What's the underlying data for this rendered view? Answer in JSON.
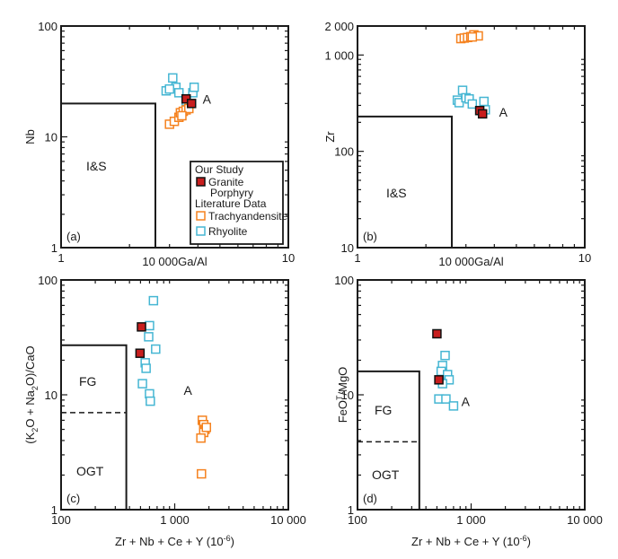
{
  "colors": {
    "granite": "#c81e1e",
    "granite_edge": "#111111",
    "trachy": "#f5821f",
    "rhyolite": "#45b6d3",
    "ink": "#1a1a1a"
  },
  "legend": {
    "our_study": "Our Study",
    "granite_line1": "Granite",
    "granite_line2": "Porphyry",
    "literature": "Literature Data",
    "trachy": "Trachyandensite",
    "rhyolite": "Rhyolite"
  },
  "chart_data": [
    {
      "id": "a",
      "type": "scatter",
      "panel_label": "(a)",
      "xscale": "log",
      "yscale": "log",
      "xlim": [
        1,
        10
      ],
      "ylim": [
        1,
        100
      ],
      "xticks": [
        1,
        10
      ],
      "xtick_labels": [
        "1",
        "10"
      ],
      "yticks": [
        1,
        10,
        100
      ],
      "ytick_labels": [
        "1",
        "10",
        "100"
      ],
      "xlabel": "10 000Ga/Al",
      "ylabel": "Nb",
      "fields": [
        {
          "label": "I&S",
          "polyline": [
            [
              1,
              20
            ],
            [
              2.6,
              20
            ],
            [
              2.6,
              1
            ]
          ]
        },
        {
          "label": "A",
          "label_at": [
            4.2,
            20
          ]
        }
      ],
      "series": [
        {
          "name": "Granite Porphyry",
          "points": [
            [
              3.55,
              22
            ],
            [
              3.75,
              20
            ]
          ]
        },
        {
          "name": "Trachyandensite",
          "points": [
            [
              3.0,
              13
            ],
            [
              3.15,
              13.8
            ],
            [
              3.3,
              15
            ],
            [
              3.35,
              16.5
            ],
            [
              3.45,
              17
            ],
            [
              3.55,
              17.5
            ],
            [
              3.65,
              18
            ],
            [
              3.4,
              15.5
            ]
          ]
        },
        {
          "name": "Rhyolite",
          "points": [
            [
              2.9,
              26
            ],
            [
              3.1,
              34
            ],
            [
              3.2,
              28
            ],
            [
              3.3,
              25
            ],
            [
              3.0,
              27
            ],
            [
              3.8,
              25
            ],
            [
              3.85,
              28
            ],
            [
              3.55,
              21
            ]
          ]
        }
      ]
    },
    {
      "id": "b",
      "type": "scatter",
      "panel_label": "(b)",
      "xscale": "log",
      "yscale": "log",
      "xlim": [
        1,
        10
      ],
      "ylim": [
        10,
        2000
      ],
      "xticks": [
        1,
        10
      ],
      "xtick_labels": [
        "1",
        "10"
      ],
      "yticks": [
        10,
        100,
        1000,
        2000
      ],
      "ytick_labels": [
        "10",
        "100",
        "1 000",
        "2 000"
      ],
      "xlabel": "10 000Ga/Al",
      "ylabel": "Zr",
      "fields": [
        {
          "label": "I&S",
          "polyline": [
            [
              1,
              230
            ],
            [
              2.6,
              230
            ],
            [
              2.6,
              10
            ]
          ]
        },
        {
          "label": "A",
          "label_at": [
            4.2,
            230
          ]
        }
      ],
      "series": [
        {
          "name": "Granite Porphyry",
          "points": [
            [
              3.45,
              265
            ],
            [
              3.55,
              245
            ]
          ]
        },
        {
          "name": "Trachyandensite",
          "points": [
            [
              2.85,
              1480
            ],
            [
              2.95,
              1500
            ],
            [
              3.05,
              1520
            ],
            [
              3.15,
              1550
            ],
            [
              3.25,
              1620
            ],
            [
              3.4,
              1580
            ],
            [
              3.2,
              1540
            ]
          ]
        },
        {
          "name": "Rhyolite",
          "points": [
            [
              2.75,
              340
            ],
            [
              2.8,
              320
            ],
            [
              2.9,
              430
            ],
            [
              3.0,
              360
            ],
            [
              3.1,
              350
            ],
            [
              3.2,
              310
            ],
            [
              3.6,
              330
            ],
            [
              3.65,
              270
            ]
          ]
        }
      ]
    },
    {
      "id": "c",
      "type": "scatter",
      "panel_label": "(c)",
      "xscale": "log",
      "yscale": "log",
      "xlim": [
        100,
        10000
      ],
      "ylim": [
        1,
        100
      ],
      "xticks": [
        100,
        1000,
        10000
      ],
      "xtick_labels": [
        "100",
        "1 000",
        "10 000"
      ],
      "yticks": [
        1,
        10,
        100
      ],
      "ytick_labels": [
        "1",
        "10",
        "100"
      ],
      "xlabel": "Zr + Nb + Ce + Y (10",
      "xlabel_exp": "-6",
      "xlabel_end": ")",
      "ylabel_parts": [
        "(K",
        "2",
        "O + Na",
        "2",
        "O)/CaO"
      ],
      "fields": [
        {
          "label": "FG",
          "polyline": [
            [
              100,
              27
            ],
            [
              375,
              27
            ],
            [
              375,
              1
            ]
          ]
        },
        {
          "label": "OGT"
        },
        {
          "label": "A",
          "label_at": [
            1200,
            10
          ]
        }
      ],
      "dashed": [
        [
          100,
          7
        ],
        [
          375,
          7
        ]
      ],
      "series": [
        {
          "name": "Granite Porphyry",
          "points": [
            [
              510,
              39
            ],
            [
              495,
              23
            ]
          ]
        },
        {
          "name": "Trachyandensite",
          "points": [
            [
              1750,
              6
            ],
            [
              1800,
              5.5
            ],
            [
              1850,
              5
            ],
            [
              1800,
              4.7
            ],
            [
              1700,
              4.2
            ],
            [
              1900,
              5.2
            ],
            [
              1720,
              2.05
            ]
          ]
        },
        {
          "name": "Rhyolite",
          "points": [
            [
              650,
              66
            ],
            [
              600,
              40
            ],
            [
              590,
              32
            ],
            [
              680,
              25
            ],
            [
              550,
              19
            ],
            [
              560,
              17
            ],
            [
              520,
              12.5
            ],
            [
              600,
              10.2
            ],
            [
              610,
              8.8
            ]
          ]
        }
      ]
    },
    {
      "id": "d",
      "type": "scatter",
      "panel_label": "(d)",
      "xscale": "log",
      "yscale": "log",
      "xlim": [
        100,
        10000
      ],
      "ylim": [
        1,
        100
      ],
      "xticks": [
        100,
        1000,
        10000
      ],
      "xtick_labels": [
        "100",
        "1 000",
        "10 000"
      ],
      "yticks": [
        1,
        10,
        100
      ],
      "ytick_labels": [
        "1",
        "10",
        "100"
      ],
      "xlabel": "Zr + Nb + Ce + Y (10",
      "xlabel_exp": "-6",
      "xlabel_end": ")",
      "ylabel_parts": [
        "FeO",
        "T",
        "/MgO"
      ],
      "fields": [
        {
          "label": "FG",
          "polyline": [
            [
              100,
              16
            ],
            [
              350,
              16
            ],
            [
              350,
              1
            ]
          ]
        },
        {
          "label": "OGT"
        },
        {
          "label": "A",
          "label_at": [
            820,
            8
          ]
        }
      ],
      "dashed": [
        [
          100,
          3.9
        ],
        [
          350,
          3.9
        ]
      ],
      "series": [
        {
          "name": "Granite Porphyry",
          "points": [
            [
              500,
              34
            ],
            [
              520,
              13.5
            ]
          ]
        },
        {
          "name": "Trachyandensite",
          "points": []
        },
        {
          "name": "Rhyolite",
          "points": [
            [
              590,
              22
            ],
            [
              560,
              18
            ],
            [
              545,
              16
            ],
            [
              620,
              15
            ],
            [
              640,
              13.5
            ],
            [
              560,
              12.5
            ],
            [
              520,
              9.2
            ],
            [
              600,
              9.2
            ],
            [
              700,
              8
            ]
          ]
        }
      ]
    }
  ]
}
